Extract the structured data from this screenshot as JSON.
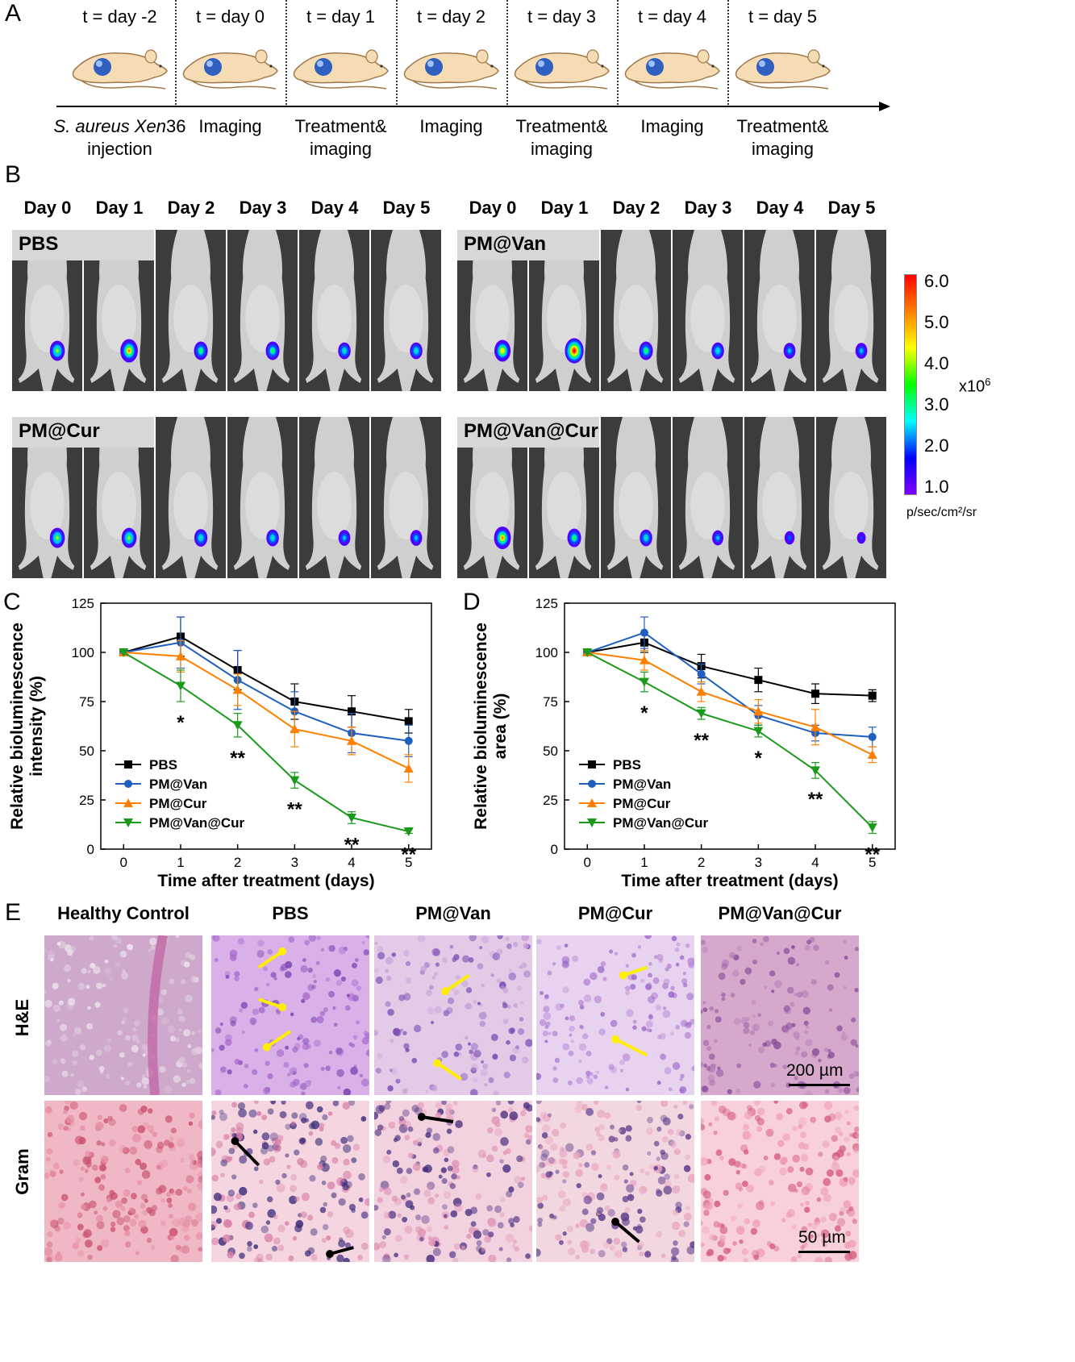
{
  "panels": {
    "A": "A",
    "B": "B",
    "C": "C",
    "D": "D",
    "E": "E"
  },
  "timeline": {
    "times": [
      "t = day -2",
      "t = day 0",
      "t = day 1",
      "t = day 2",
      "t = day 3",
      "t = day 4",
      "t = day 5"
    ],
    "captions": [
      {
        "line1_italic": "S. aureus Xen",
        "line1_rest": "36",
        "line2": "injection"
      },
      {
        "line1": "Imaging",
        "line2": ""
      },
      {
        "line1": "Treatment&",
        "line2": "imaging"
      },
      {
        "line1": "Imaging",
        "line2": ""
      },
      {
        "line1": "Treatment&",
        "line2": "imaging"
      },
      {
        "line1": "Imaging",
        "line2": ""
      },
      {
        "line1": "Treatment&",
        "line2": "imaging"
      }
    ]
  },
  "imaging": {
    "days": [
      "Day 0",
      "Day 1",
      "Day 2",
      "Day 3",
      "Day 4",
      "Day 5"
    ],
    "groups": [
      "PBS",
      "PM@Van",
      "PM@Cur",
      "PM@Van@Cur"
    ],
    "signal_level": {
      "PBS": [
        0.7,
        0.9,
        0.6,
        0.6,
        0.5,
        0.5
      ],
      "PM@Van": [
        0.8,
        1.0,
        0.6,
        0.5,
        0.45,
        0.45
      ],
      "PM@Cur": [
        0.7,
        0.7,
        0.55,
        0.5,
        0.45,
        0.45
      ],
      "PM@Van@Cur": [
        0.85,
        0.6,
        0.5,
        0.4,
        0.3,
        0.2
      ]
    },
    "colorbar": {
      "ticks": [
        "6.0",
        "5.0",
        "4.0",
        "3.0",
        "2.0",
        "1.0"
      ],
      "multiplier": "x10",
      "exponent": "6",
      "unit": "p/sec/cm²/sr",
      "colors": [
        "#ff0000",
        "#ff8000",
        "#ffff00",
        "#00ff00",
        "#00ffff",
        "#0000ff",
        "#8000ff"
      ]
    }
  },
  "chart_data": [
    {
      "type": "line",
      "panel": "C",
      "xlabel": "Time after treatment (days)",
      "ylabel": "Relative bioluminescence intensity (%)",
      "ylabel_lines": [
        "Relative bioluminescence",
        "intensity (%)"
      ],
      "x": [
        0,
        1,
        2,
        3,
        4,
        5
      ],
      "xlim": [
        -0.4,
        5.4
      ],
      "ylim": [
        0,
        125
      ],
      "yticks": [
        0,
        25,
        50,
        75,
        100,
        125
      ],
      "series": [
        {
          "name": "PBS",
          "color": "#000000",
          "marker": "square",
          "values": [
            100,
            108,
            91,
            75,
            70,
            65
          ],
          "err": [
            0,
            10,
            10,
            9,
            8,
            6
          ]
        },
        {
          "name": "PM@Van",
          "color": "#1f5fbf",
          "marker": "circle",
          "values": [
            100,
            105,
            86,
            70,
            59,
            55
          ],
          "err": [
            0,
            13,
            15,
            10,
            10,
            8
          ]
        },
        {
          "name": "PM@Cur",
          "color": "#ff8000",
          "marker": "triangle-up",
          "values": [
            100,
            98,
            81,
            61,
            55,
            41
          ],
          "err": [
            0,
            8,
            8,
            9,
            7,
            7
          ]
        },
        {
          "name": "PM@Van@Cur",
          "color": "#1a9a1a",
          "marker": "triangle-down",
          "values": [
            100,
            83,
            63,
            35,
            16,
            9
          ],
          "err": [
            0,
            8,
            6,
            4,
            3,
            1
          ]
        }
      ],
      "annotations": [
        {
          "x": 1,
          "text": "*"
        },
        {
          "x": 2,
          "text": "**"
        },
        {
          "x": 3,
          "text": "**"
        },
        {
          "x": 4,
          "text": "**"
        },
        {
          "x": 5,
          "text": "**"
        }
      ]
    },
    {
      "type": "line",
      "panel": "D",
      "xlabel": "Time after treatment (days)",
      "ylabel": "Relative bioluminescence area (%)",
      "ylabel_lines": [
        "Relative bioluminescence",
        "area (%)"
      ],
      "x": [
        0,
        1,
        2,
        3,
        4,
        5
      ],
      "xlim": [
        -0.4,
        5.4
      ],
      "ylim": [
        0,
        125
      ],
      "yticks": [
        0,
        25,
        50,
        75,
        100,
        125
      ],
      "series": [
        {
          "name": "PBS",
          "color": "#000000",
          "marker": "square",
          "values": [
            100,
            105,
            93,
            86,
            79,
            78
          ],
          "err": [
            0,
            5,
            6,
            6,
            5,
            3
          ]
        },
        {
          "name": "PM@Van",
          "color": "#1f5fbf",
          "marker": "circle",
          "values": [
            100,
            110,
            89,
            68,
            59,
            57
          ],
          "err": [
            0,
            8,
            5,
            5,
            4,
            5
          ]
        },
        {
          "name": "PM@Cur",
          "color": "#ff8000",
          "marker": "triangle-up",
          "values": [
            100,
            96,
            80,
            70,
            62,
            48
          ],
          "err": [
            0,
            5,
            5,
            6,
            9,
            4
          ]
        },
        {
          "name": "PM@Van@Cur",
          "color": "#1a9a1a",
          "marker": "triangle-down",
          "values": [
            100,
            85,
            69,
            60,
            40,
            11
          ],
          "err": [
            0,
            5,
            3,
            3,
            4,
            3
          ]
        }
      ],
      "annotations": [
        {
          "x": 1,
          "text": "*"
        },
        {
          "x": 2,
          "text": "**"
        },
        {
          "x": 3,
          "text": "*"
        },
        {
          "x": 4,
          "text": "**"
        },
        {
          "x": 5,
          "text": "**"
        }
      ]
    }
  ],
  "histology": {
    "columns": [
      "Healthy Control",
      "PBS",
      "PM@Van",
      "PM@Cur",
      "PM@Van@Cur"
    ],
    "rows": [
      "H&E",
      "Gram"
    ],
    "scalebars": [
      "200 µm",
      "50 µm"
    ]
  }
}
